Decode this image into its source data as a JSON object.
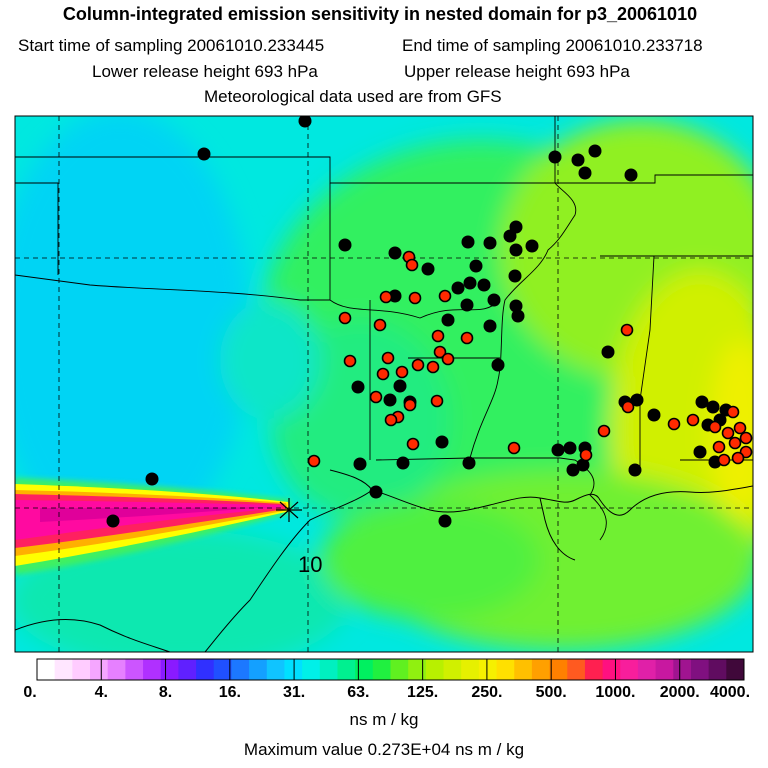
{
  "header": {
    "title": "Column-integrated emission sensitivity in nested domain for p3_20061010",
    "start_label": "Start time of sampling 20061010.233445",
    "end_label": "End time of sampling 20061010.233718",
    "lower_label": "Lower release height  693 hPa",
    "upper_label": "Upper release height  693 hPa",
    "met_label": "Meteorological data used are from GFS"
  },
  "map": {
    "release_marker_label": "10",
    "colors": {
      "background": "#00e6e6",
      "plume_core": "#ff1493",
      "plume_edge": "#ffff00",
      "site_red": "#ff2a00",
      "site_black": "#000000"
    }
  },
  "colorbar": {
    "ticks": [
      "0.",
      "4.",
      "8.",
      "16.",
      "31.",
      "63.",
      "125.",
      "250.",
      "500.",
      "1000.",
      "2000.",
      "4000."
    ],
    "colors": [
      "#ffffff",
      "#ffe6ff",
      "#ffccff",
      "#f5a6ff",
      "#e680ff",
      "#cc55ff",
      "#b030ff",
      "#8a1aff",
      "#6020ff",
      "#3030ff",
      "#2050ff",
      "#1c78ff",
      "#14a0ff",
      "#10c4ff",
      "#00e0ff",
      "#00f0e8",
      "#00f0c0",
      "#00f090",
      "#00f060",
      "#20f040",
      "#60f020",
      "#90f010",
      "#b8f000",
      "#d0f000",
      "#e6f000",
      "#f6f000",
      "#ffe000",
      "#ffc000",
      "#ffa000",
      "#ff8000",
      "#ff5a20",
      "#ff2050",
      "#ff1080",
      "#f81e9c",
      "#e020a8",
      "#c818a0",
      "#a01490",
      "#801080",
      "#600c60",
      "#40083a"
    ],
    "units_label": "ns m / kg",
    "max_label": "Maximum value  0.273E+04 ns m / kg"
  }
}
